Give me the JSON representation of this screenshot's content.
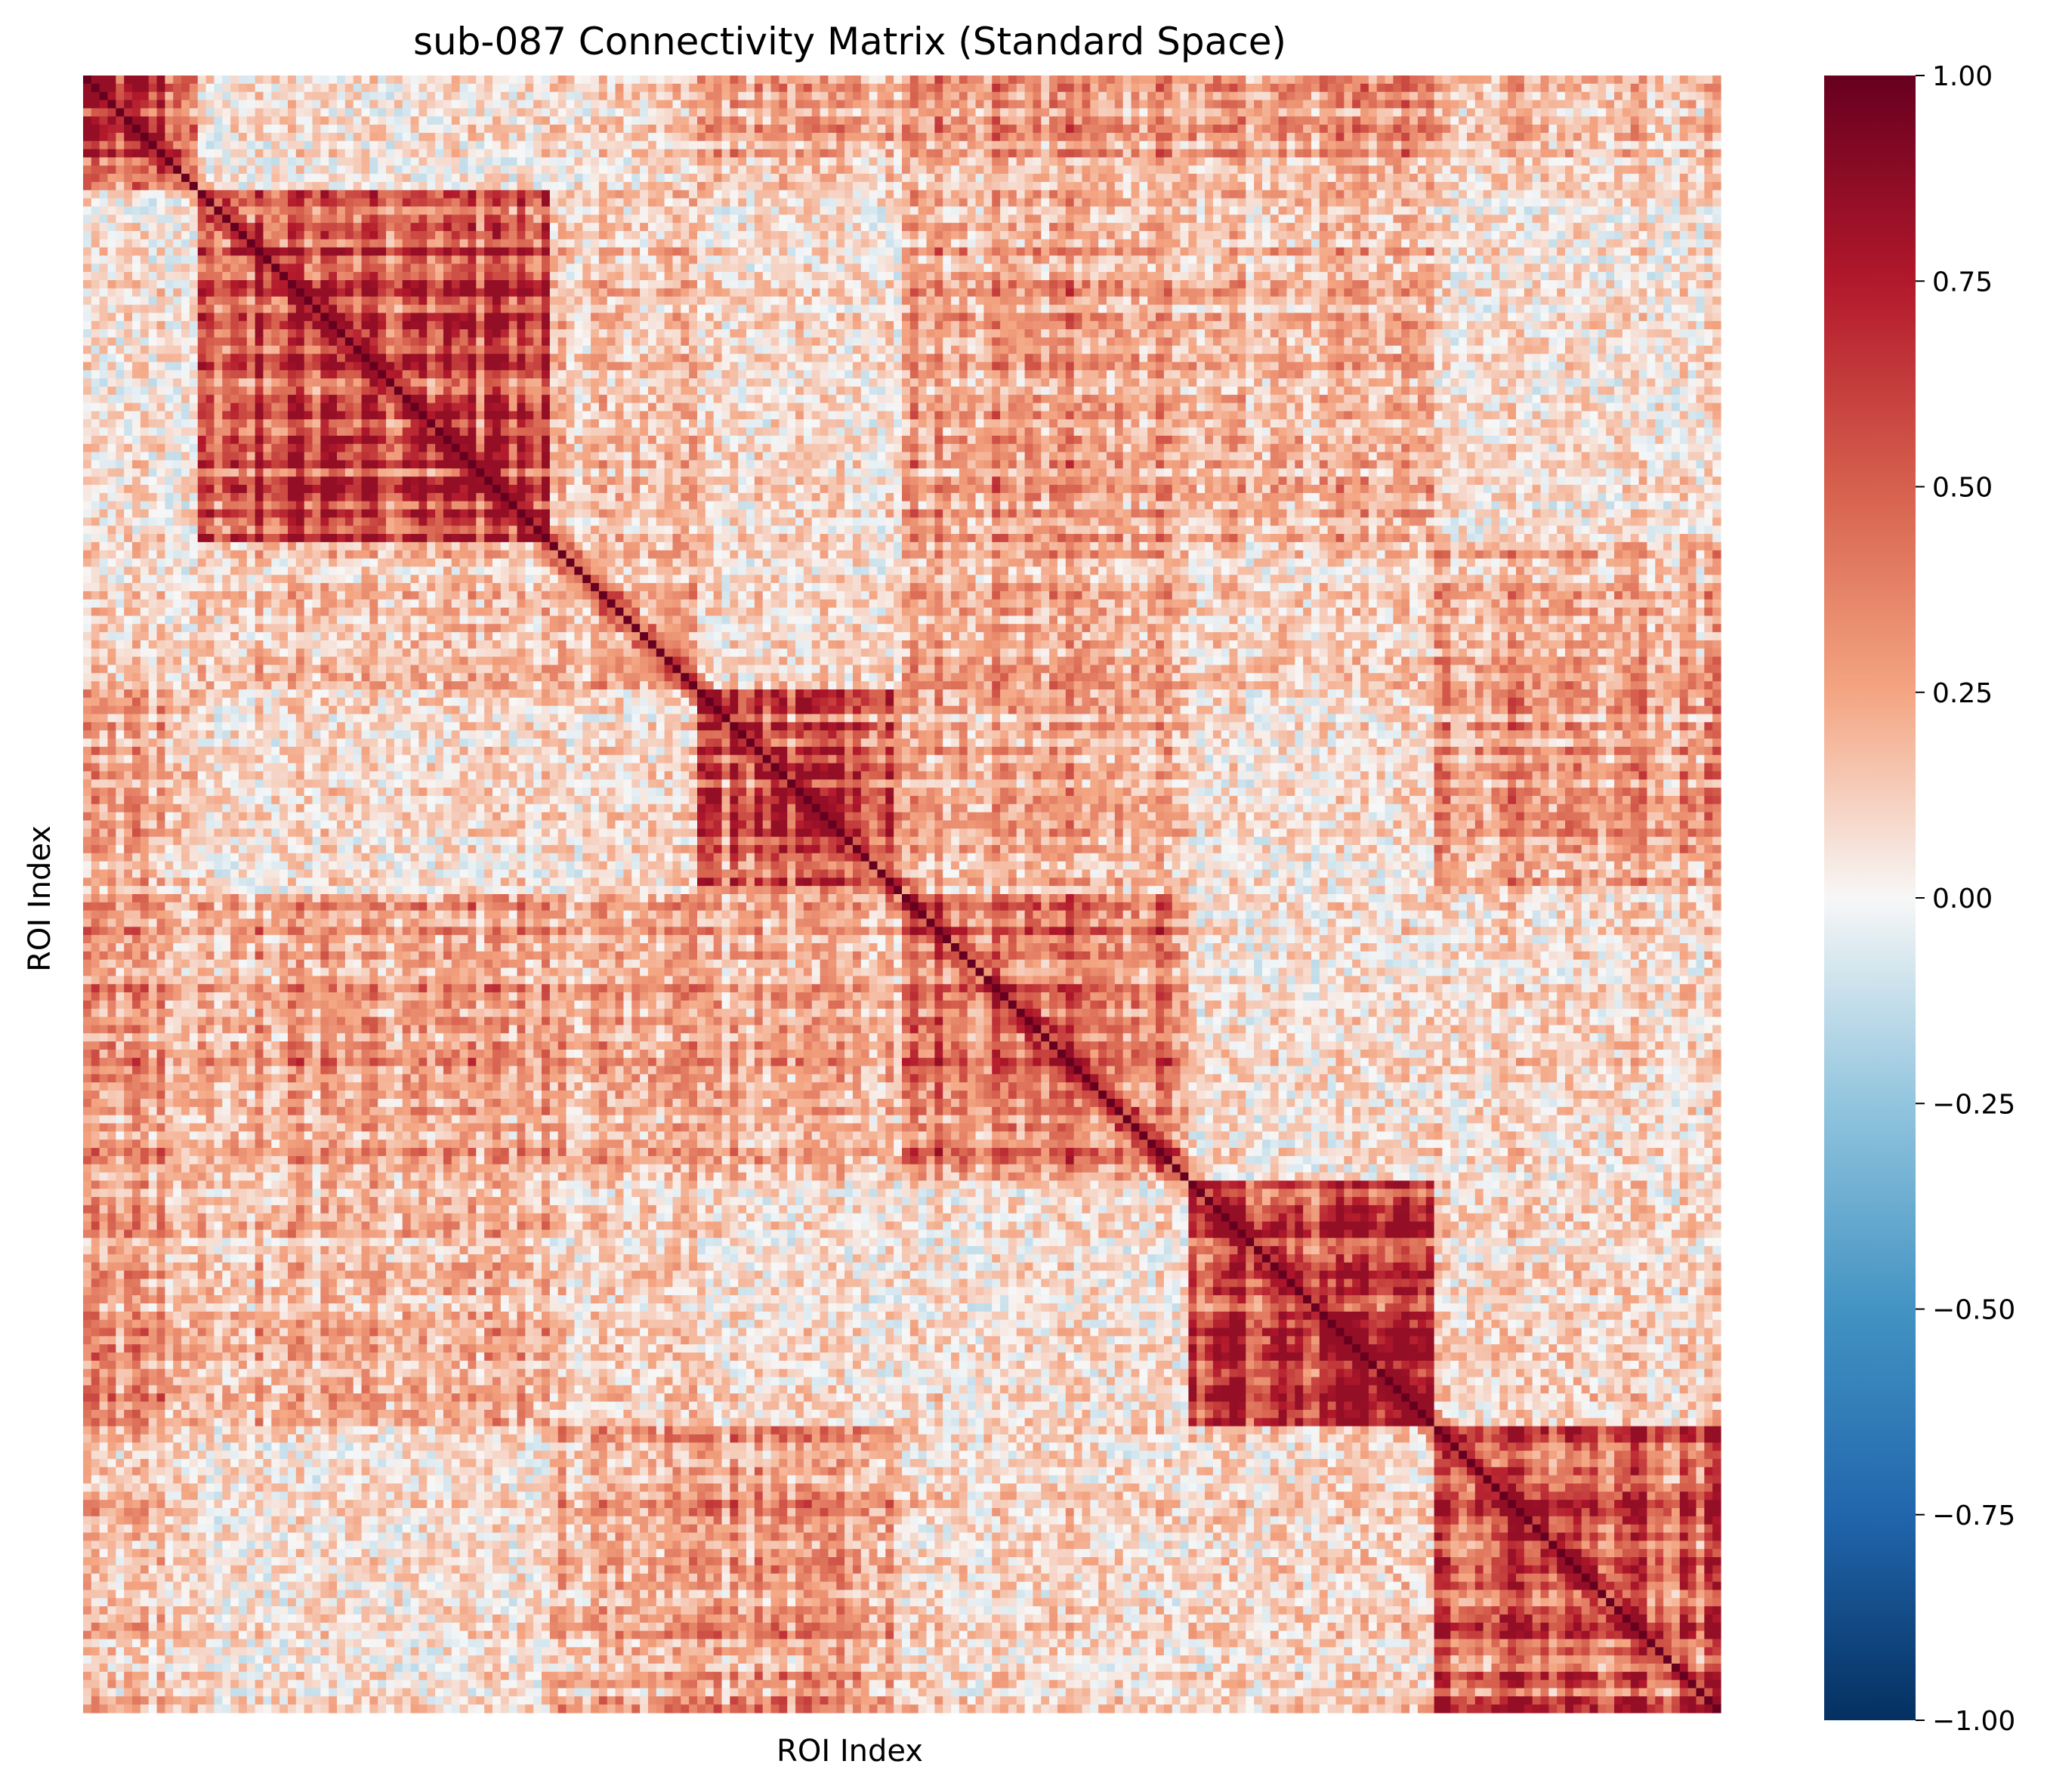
{
  "chart_data": {
    "type": "heatmap",
    "title": "sub-087 Connectivity Matrix (Standard Space)",
    "xlabel": "ROI Index",
    "ylabel": "ROI Index",
    "n_rois": 200,
    "xticks_shown": false,
    "yticks_shown": false,
    "colormap": "RdBu_r",
    "value_range": [
      -1.0,
      1.0
    ],
    "diagonal_value": 1.0,
    "colorbar": {
      "position": "right",
      "ticks": [
        1.0,
        0.75,
        0.5,
        0.25,
        0.0,
        -0.25,
        -0.5,
        -0.75,
        -1.0
      ],
      "tick_labels": [
        "1.00",
        "0.75",
        "0.50",
        "0.25",
        "0.00",
        "−0.25",
        "−0.50",
        "−0.75",
        "−1.00"
      ]
    },
    "colormap_stops": [
      {
        "value": -1.0,
        "color": "#053061"
      },
      {
        "value": -0.75,
        "color": "#2166ac"
      },
      {
        "value": -0.5,
        "color": "#4393c3"
      },
      {
        "value": -0.25,
        "color": "#92c5de"
      },
      {
        "value": 0.0,
        "color": "#f7f7f7"
      },
      {
        "value": 0.25,
        "color": "#f4a582"
      },
      {
        "value": 0.5,
        "color": "#d6604d"
      },
      {
        "value": 0.75,
        "color": "#b2182b"
      },
      {
        "value": 1.0,
        "color": "#67001f"
      }
    ],
    "block_structure": [
      {
        "rois": [
          0,
          14
        ],
        "mean_within": 0.55
      },
      {
        "rois": [
          14,
          57
        ],
        "mean_within": 0.6
      },
      {
        "rois": [
          57,
          75
        ],
        "mean_within": 0.2
      },
      {
        "rois": [
          75,
          100
        ],
        "mean_within": 0.5
      },
      {
        "rois": [
          100,
          135
        ],
        "mean_within": 0.45
      },
      {
        "rois": [
          135,
          165
        ],
        "mean_within": 0.6
      },
      {
        "rois": [
          165,
          200
        ],
        "mean_within": 0.55
      }
    ],
    "typical_offdiagonal_range": [
      -0.3,
      0.7
    ]
  }
}
